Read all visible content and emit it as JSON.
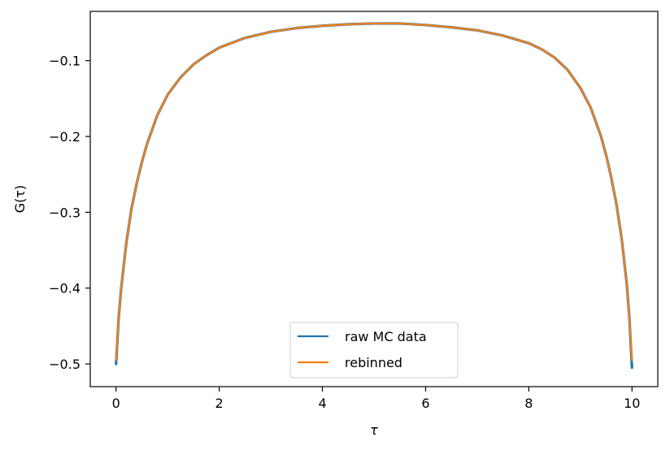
{
  "chart_data": {
    "type": "line",
    "title": "",
    "xlabel": "τ",
    "ylabel": "G(τ)",
    "xlim": [
      -0.5,
      10.5
    ],
    "ylim": [
      -0.53,
      -0.035
    ],
    "xticks": [
      0,
      2,
      4,
      6,
      8,
      10
    ],
    "xtick_labels": [
      "0",
      "2",
      "4",
      "6",
      "8",
      "10"
    ],
    "yticks": [
      -0.1,
      -0.2,
      -0.3,
      -0.4,
      -0.5
    ],
    "ytick_labels": [
      "−0.1",
      "−0.2",
      "−0.3",
      "−0.4",
      "−0.5"
    ],
    "grid": false,
    "legend_position": "lower center",
    "series": [
      {
        "name": "raw MC data",
        "color": "#1f77b4",
        "x": [
          0,
          0.05,
          0.1,
          0.2,
          0.3,
          0.4,
          0.5,
          0.6,
          0.8,
          1.0,
          1.25,
          1.5,
          1.75,
          2.0,
          2.5,
          3.0,
          3.5,
          4.0,
          4.5,
          5.0,
          5.5,
          6.0,
          6.5,
          7.0,
          7.5,
          8.0,
          8.25,
          8.5,
          8.75,
          9.0,
          9.2,
          9.4,
          9.5,
          9.6,
          9.7,
          9.8,
          9.9,
          9.95,
          10.0
        ],
        "y": [
          -0.5,
          -0.44,
          -0.4,
          -0.34,
          -0.295,
          -0.262,
          -0.234,
          -0.21,
          -0.172,
          -0.145,
          -0.122,
          -0.105,
          -0.093,
          -0.083,
          -0.07,
          -0.062,
          -0.057,
          -0.054,
          -0.052,
          -0.051,
          -0.051,
          -0.053,
          -0.056,
          -0.06,
          -0.067,
          -0.077,
          -0.085,
          -0.096,
          -0.112,
          -0.136,
          -0.162,
          -0.2,
          -0.225,
          -0.255,
          -0.29,
          -0.335,
          -0.395,
          -0.44,
          -0.505
        ]
      },
      {
        "name": "rebinned",
        "color": "#ff7f0e",
        "x": [
          0,
          0.05,
          0.1,
          0.2,
          0.3,
          0.4,
          0.5,
          0.6,
          0.8,
          1.0,
          1.25,
          1.5,
          1.75,
          2.0,
          2.5,
          3.0,
          3.5,
          4.0,
          4.5,
          5.0,
          5.5,
          6.0,
          6.5,
          7.0,
          7.5,
          8.0,
          8.25,
          8.5,
          8.75,
          9.0,
          9.2,
          9.4,
          9.5,
          9.6,
          9.7,
          9.8,
          9.9,
          9.95,
          10.0
        ],
        "y": [
          -0.495,
          -0.44,
          -0.4,
          -0.34,
          -0.295,
          -0.262,
          -0.234,
          -0.21,
          -0.172,
          -0.145,
          -0.122,
          -0.105,
          -0.093,
          -0.083,
          -0.07,
          -0.062,
          -0.057,
          -0.054,
          -0.052,
          -0.051,
          -0.051,
          -0.053,
          -0.056,
          -0.06,
          -0.067,
          -0.077,
          -0.085,
          -0.096,
          -0.112,
          -0.136,
          -0.162,
          -0.2,
          -0.225,
          -0.255,
          -0.29,
          -0.335,
          -0.395,
          -0.44,
          -0.495
        ]
      }
    ]
  }
}
